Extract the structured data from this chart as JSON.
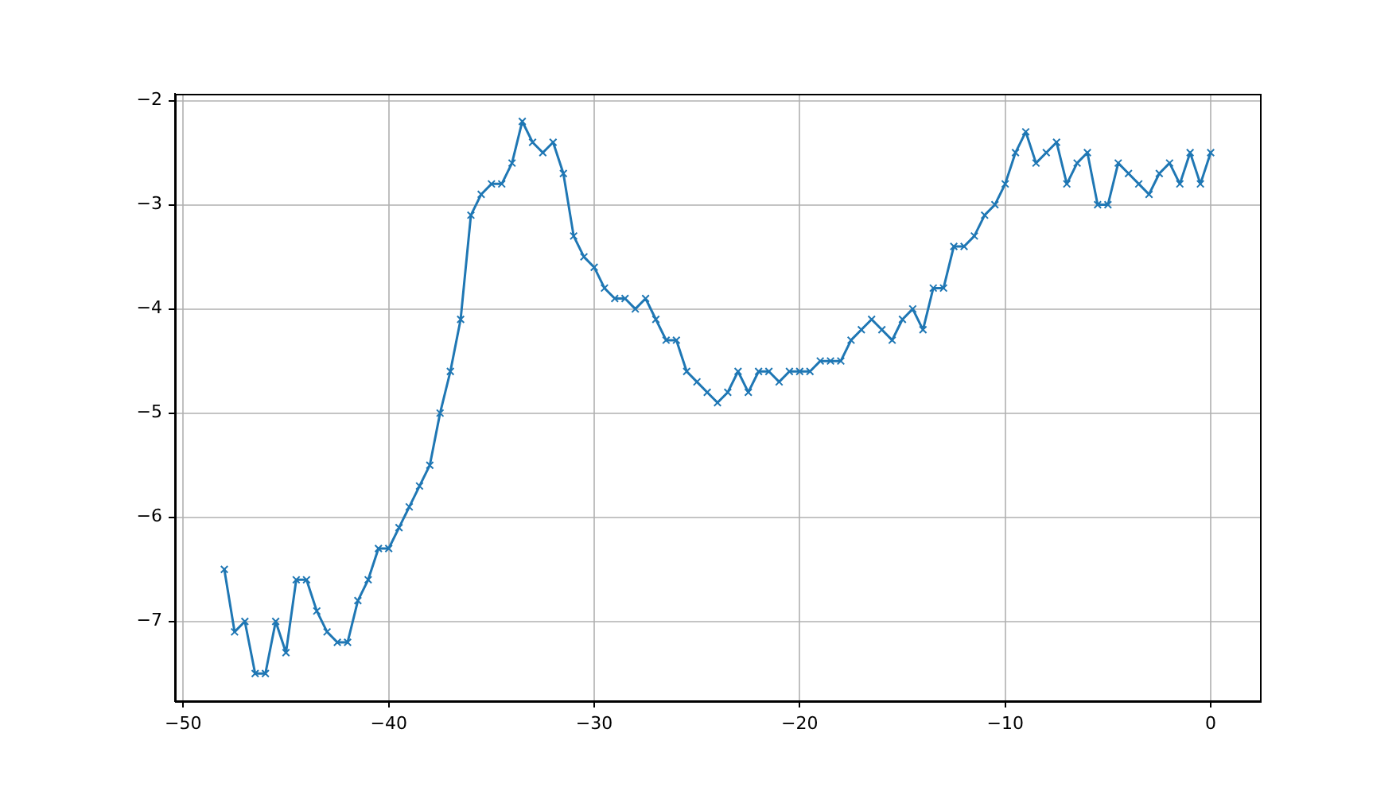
{
  "chart_data": {
    "type": "line",
    "x": [
      -48,
      -47.5,
      -47,
      -46.5,
      -46,
      -45.5,
      -45,
      -44.5,
      -44,
      -43.5,
      -43,
      -42.5,
      -42,
      -41.5,
      -41,
      -40.5,
      -40,
      -39.5,
      -39,
      -38.5,
      -38,
      -37.5,
      -37,
      -36.5,
      -36,
      -35.5,
      -35,
      -34.5,
      -34,
      -33.5,
      -33,
      -32.5,
      -32,
      -31.5,
      -31,
      -30.5,
      -30,
      -29.5,
      -29,
      -28.5,
      -28,
      -27.5,
      -27,
      -26.5,
      -26,
      -25.5,
      -25,
      -24.5,
      -24,
      -23.5,
      -23,
      -22.5,
      -22,
      -21.5,
      -21,
      -20.5,
      -20,
      -19.5,
      -19,
      -18.5,
      -18,
      -17.5,
      -17,
      -16.5,
      -16,
      -15.5,
      -15,
      -14.5,
      -14,
      -13.5,
      -13,
      -12.5,
      -12,
      -11.5,
      -11,
      -10.5,
      -10,
      -9.5,
      -9,
      -8.5,
      -8,
      -7.5,
      -7,
      -6.5,
      -6,
      -5.5,
      -5,
      -4.5,
      -4,
      -3.5,
      -3,
      -2.5,
      -2,
      -1.5,
      -1,
      -0.5,
      0
    ],
    "values": [
      -6.5,
      -7.1,
      -7,
      -7.5,
      -7.5,
      -7,
      -7.3,
      -6.6,
      -6.6,
      -6.9,
      -7.1,
      -7.2,
      -7.2,
      -6.8,
      -6.6,
      -6.3,
      -6.3,
      -6.1,
      -5.9,
      -5.7,
      -5.5,
      -5,
      -4.6,
      -4.1,
      -3.1,
      -2.9,
      -2.8,
      -2.8,
      -2.6,
      -2.2,
      -2.4,
      -2.5,
      -2.4,
      -2.7,
      -3.3,
      -3.5,
      -3.6,
      -3.8,
      -3.9,
      -3.9,
      -4,
      -3.9,
      -4.1,
      -4.3,
      -4.3,
      -4.6,
      -4.7,
      -4.8,
      -4.9,
      -4.8,
      -4.6,
      -4.8,
      -4.6,
      -4.6,
      -4.7,
      -4.6,
      -4.6,
      -4.6,
      -4.5,
      -4.5,
      -4.5,
      -4.3,
      -4.2,
      -4.1,
      -4.2,
      -4.3,
      -4.1,
      -4,
      -4.2,
      -3.8,
      -3.8,
      -3.4,
      -3.4,
      -3.3,
      -3.1,
      -3,
      -2.8,
      -2.5,
      -2.3,
      -2.6,
      -2.5,
      -2.4,
      -2.8,
      -2.6,
      -2.5,
      -3,
      -3,
      -2.6,
      -2.7,
      -2.8,
      -2.9,
      -2.7,
      -2.6,
      -2.8,
      -2.5,
      -2.8,
      -2.5
    ],
    "color": "#1f77b4",
    "xlim": [
      -50.4,
      2.4
    ],
    "ylim": [
      -7.765,
      -1.935
    ],
    "xticks": [
      {
        "value": -50,
        "label": "−50"
      },
      {
        "value": -40,
        "label": "−40"
      },
      {
        "value": -30,
        "label": "−30"
      },
      {
        "value": -20,
        "label": "−20"
      },
      {
        "value": -10,
        "label": "−10"
      },
      0
    ],
    "yticks": [
      {
        "value": -7,
        "label": "−7"
      },
      {
        "value": -6,
        "label": "−6"
      },
      {
        "value": -5,
        "label": "−5"
      },
      {
        "value": -4,
        "label": "−4"
      },
      {
        "value": -3,
        "label": "−3"
      },
      {
        "value": -2,
        "label": "−2"
      }
    ],
    "grid": true,
    "marker": "cross",
    "line_style": "solid"
  }
}
